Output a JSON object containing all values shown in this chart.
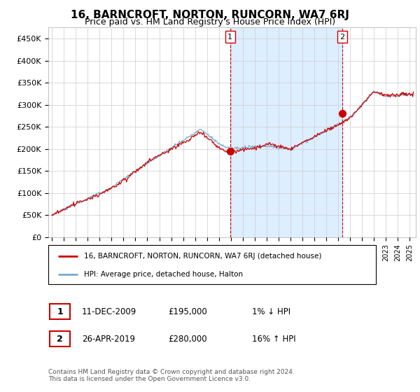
{
  "title": "16, BARNCROFT, NORTON, RUNCORN, WA7 6RJ",
  "subtitle": "Price paid vs. HM Land Registry's House Price Index (HPI)",
  "ylabel_values": [
    "£0",
    "£50K",
    "£100K",
    "£150K",
    "£200K",
    "£250K",
    "£300K",
    "£350K",
    "£400K",
    "£450K"
  ],
  "yticks": [
    0,
    50000,
    100000,
    150000,
    200000,
    250000,
    300000,
    350000,
    400000,
    450000
  ],
  "ylim": [
    0,
    475000
  ],
  "xlim_start": 1994.7,
  "xlim_end": 2025.5,
  "transaction1_x": 2009.94,
  "transaction1_y": 195000,
  "transaction1_label": "1",
  "transaction2_x": 2019.32,
  "transaction2_y": 280000,
  "transaction2_label": "2",
  "line_color_red": "#cc0000",
  "line_color_blue": "#7aaacc",
  "shade_color": "#ddeeff",
  "vline_color": "#cc0000",
  "legend_label_red": "16, BARNCROFT, NORTON, RUNCORN, WA7 6RJ (detached house)",
  "legend_label_blue": "HPI: Average price, detached house, Halton",
  "footnote1_label": "1",
  "footnote1_date": "11-DEC-2009",
  "footnote1_price": "£195,000",
  "footnote1_hpi": "1% ↓ HPI",
  "footnote2_label": "2",
  "footnote2_date": "26-APR-2019",
  "footnote2_price": "£280,000",
  "footnote2_hpi": "16% ↑ HPI",
  "copyright_text": "Contains HM Land Registry data © Crown copyright and database right 2024.\nThis data is licensed under the Open Government Licence v3.0.",
  "background_color": "#ffffff",
  "grid_color": "#cccccc"
}
